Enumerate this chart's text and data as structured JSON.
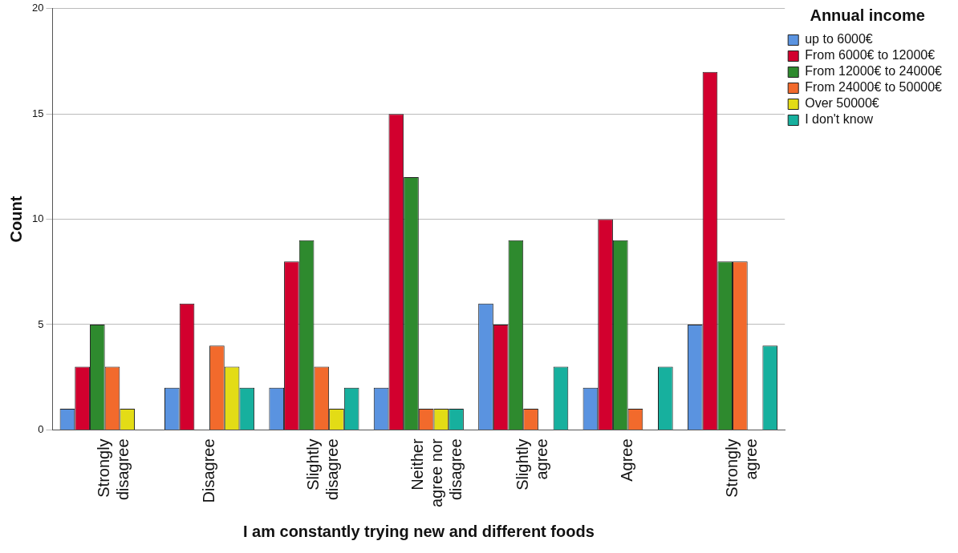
{
  "chart_data": {
    "type": "bar",
    "xlabel": "I am constantly trying new and different foods",
    "ylabel": "Count",
    "legend_title": "Annual income",
    "categories": [
      "Strongly disagree",
      "Disagree",
      "Slightly disagree",
      "Neither agree nor disagree",
      "Slightly agree",
      "Agree",
      "Strongly agree"
    ],
    "series": [
      {
        "name": "up to 6000€",
        "color": "#5a93e0",
        "values": [
          1,
          2,
          2,
          2,
          6,
          2,
          5
        ]
      },
      {
        "name": "From 6000€ to 12000€",
        "color": "#d2002e",
        "values": [
          3,
          6,
          8,
          15,
          5,
          10,
          17
        ]
      },
      {
        "name": "From 12000€ to 24000€",
        "color": "#2e8a2e",
        "values": [
          5,
          0,
          9,
          12,
          9,
          9,
          8
        ]
      },
      {
        "name": "From 24000€ to 50000€",
        "color": "#f26a2c",
        "values": [
          3,
          4,
          3,
          1,
          1,
          1,
          8
        ]
      },
      {
        "name": "Over 50000€",
        "color": "#e3dc16",
        "values": [
          1,
          3,
          1,
          1,
          0,
          0,
          0
        ]
      },
      {
        "name": "I don't know",
        "color": "#17b09e",
        "values": [
          0,
          2,
          2,
          1,
          3,
          3,
          4
        ]
      }
    ],
    "ylim": [
      0,
      20
    ],
    "yticks": [
      0,
      5,
      10,
      15,
      20
    ],
    "grid": "y",
    "legend": "top right"
  }
}
